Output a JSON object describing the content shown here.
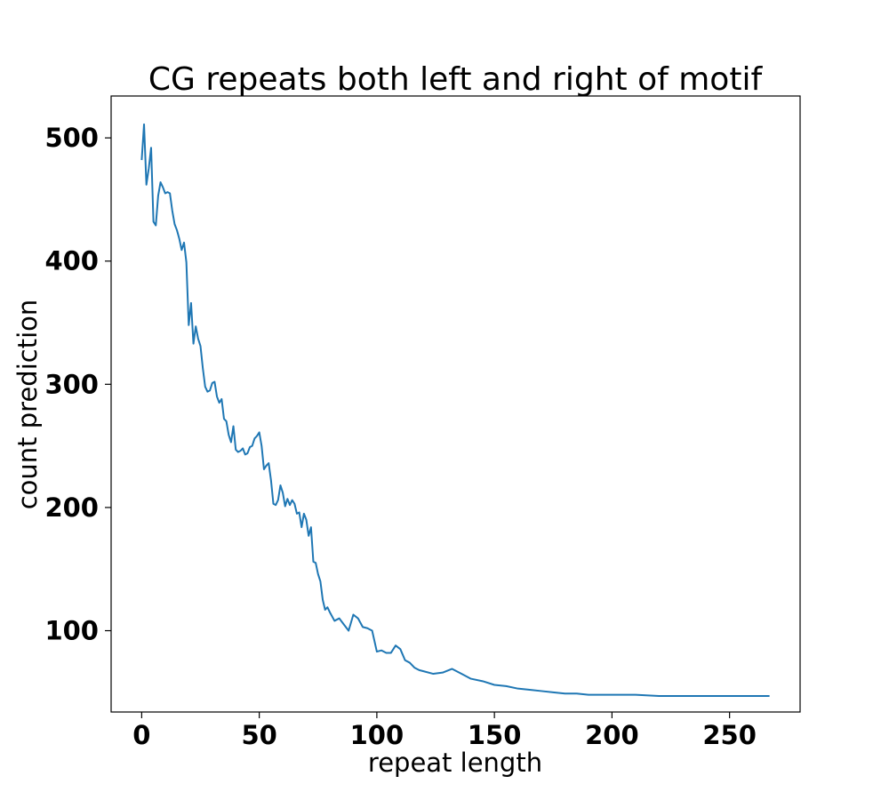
{
  "chart_data": {
    "type": "line",
    "title": "CG repeats both left and right of motif",
    "xlabel": "repeat length",
    "ylabel": "count prediction",
    "xlim": [
      -13,
      280
    ],
    "ylim": [
      34,
      534
    ],
    "xticks": [
      0,
      50,
      100,
      150,
      200,
      250
    ],
    "yticks": [
      100,
      200,
      300,
      400,
      500
    ],
    "grid": false,
    "legend": "none",
    "series": [
      {
        "color": "#1f77b4",
        "x": [
          0,
          1,
          2,
          3,
          4,
          5,
          6,
          7,
          8,
          9,
          10,
          11,
          12,
          13,
          14,
          15,
          16,
          17,
          18,
          19,
          20,
          21,
          22,
          23,
          24,
          25,
          26,
          27,
          28,
          29,
          30,
          31,
          32,
          33,
          34,
          35,
          36,
          37,
          38,
          39,
          40,
          41,
          42,
          43,
          44,
          45,
          46,
          47,
          48,
          49,
          50,
          51,
          52,
          53,
          54,
          55,
          56,
          57,
          58,
          59,
          60,
          61,
          62,
          63,
          64,
          65,
          66,
          67,
          68,
          69,
          70,
          71,
          72,
          73,
          74,
          75,
          76,
          77,
          78,
          79,
          80,
          82,
          84,
          86,
          88,
          90,
          92,
          94,
          96,
          98,
          100,
          102,
          104,
          106,
          108,
          110,
          112,
          114,
          116,
          118,
          120,
          124,
          128,
          132,
          136,
          140,
          145,
          150,
          155,
          160,
          165,
          170,
          175,
          180,
          185,
          190,
          200,
          210,
          220,
          230,
          240,
          250,
          260,
          267
        ],
        "y": [
          482,
          511,
          462,
          475,
          492,
          432,
          429,
          453,
          464,
          460,
          455,
          456,
          455,
          441,
          430,
          425,
          418,
          409,
          415,
          399,
          348,
          366,
          333,
          347,
          337,
          331,
          313,
          298,
          294,
          295,
          301,
          302,
          290,
          285,
          288,
          272,
          270,
          259,
          253,
          266,
          247,
          245,
          246,
          248,
          243,
          244,
          249,
          250,
          256,
          258,
          261,
          250,
          231,
          234,
          236,
          222,
          203,
          202,
          206,
          218,
          212,
          201,
          207,
          202,
          206,
          203,
          195,
          196,
          184,
          195,
          190,
          177,
          184,
          156,
          155,
          146,
          140,
          125,
          117,
          119,
          115,
          108,
          110,
          105,
          100,
          113,
          110,
          103,
          102,
          100,
          83,
          84,
          82,
          82,
          88,
          85,
          76,
          74,
          70,
          68,
          67,
          65,
          66,
          69,
          65,
          61,
          59,
          56,
          55,
          53,
          52,
          51,
          50,
          49,
          49,
          48,
          48,
          48,
          47,
          47,
          47,
          47,
          47,
          47
        ]
      }
    ]
  }
}
